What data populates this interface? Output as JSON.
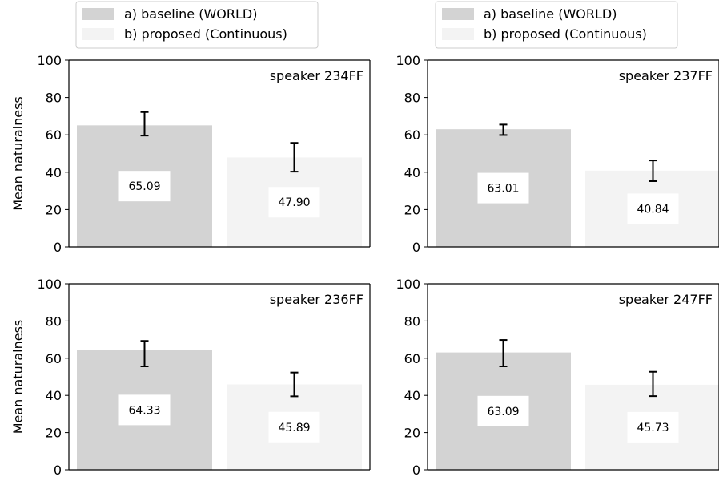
{
  "chart_data": [
    {
      "type": "bar",
      "annotation": "speaker 234FF",
      "ylabel": "Mean naturalness",
      "ylim": [
        0,
        100
      ],
      "yticks": [
        "0",
        "20",
        "40",
        "60",
        "80",
        "100"
      ],
      "series": [
        {
          "name": "a) baseline (WORLD)",
          "value": 65.09,
          "label": "65.09",
          "err_low": 59.6,
          "err_high": 72.2,
          "color": "#d3d3d3"
        },
        {
          "name": "b) proposed (Continuous)",
          "value": 47.9,
          "label": "47.90",
          "err_low": 40.3,
          "err_high": 55.7,
          "color": "#f3f3f3"
        }
      ]
    },
    {
      "type": "bar",
      "annotation": "speaker 237FF",
      "ylabel": "",
      "ylim": [
        0,
        100
      ],
      "yticks": [
        "0",
        "20",
        "40",
        "60",
        "80",
        "100"
      ],
      "series": [
        {
          "name": "a) baseline (WORLD)",
          "value": 63.01,
          "label": "63.01",
          "err_low": 59.9,
          "err_high": 65.5,
          "color": "#d3d3d3"
        },
        {
          "name": "b) proposed (Continuous)",
          "value": 40.84,
          "label": "40.84",
          "err_low": 35.2,
          "err_high": 46.3,
          "color": "#f3f3f3"
        }
      ]
    },
    {
      "type": "bar",
      "annotation": "speaker 236FF",
      "ylabel": "Mean naturalness",
      "ylim": [
        0,
        100
      ],
      "yticks": [
        "0",
        "20",
        "40",
        "60",
        "80",
        "100"
      ],
      "series": [
        {
          "name": "a) baseline (WORLD)",
          "value": 64.33,
          "label": "64.33",
          "err_low": 55.6,
          "err_high": 69.3,
          "color": "#d3d3d3"
        },
        {
          "name": "b) proposed (Continuous)",
          "value": 45.89,
          "label": "45.89",
          "err_low": 39.5,
          "err_high": 52.3,
          "color": "#f3f3f3"
        }
      ]
    },
    {
      "type": "bar",
      "annotation": "speaker 247FF",
      "ylabel": "",
      "ylim": [
        0,
        100
      ],
      "yticks": [
        "0",
        "20",
        "40",
        "60",
        "80",
        "100"
      ],
      "series": [
        {
          "name": "a) baseline (WORLD)",
          "value": 63.09,
          "label": "63.09",
          "err_low": 55.6,
          "err_high": 69.8,
          "color": "#d3d3d3"
        },
        {
          "name": "b) proposed (Continuous)",
          "value": 45.73,
          "label": "45.73",
          "err_low": 39.6,
          "err_high": 52.7,
          "color": "#f3f3f3"
        }
      ]
    }
  ],
  "legends": [
    {
      "placement": "top-left",
      "items": [
        "a) baseline (WORLD)",
        "b) proposed (Continuous)"
      ]
    },
    {
      "placement": "top-right",
      "items": [
        "a) baseline (WORLD)",
        "b) proposed (Continuous)"
      ]
    }
  ],
  "colors": {
    "baseline": "#d3d3d3",
    "proposed": "#f3f3f3"
  }
}
